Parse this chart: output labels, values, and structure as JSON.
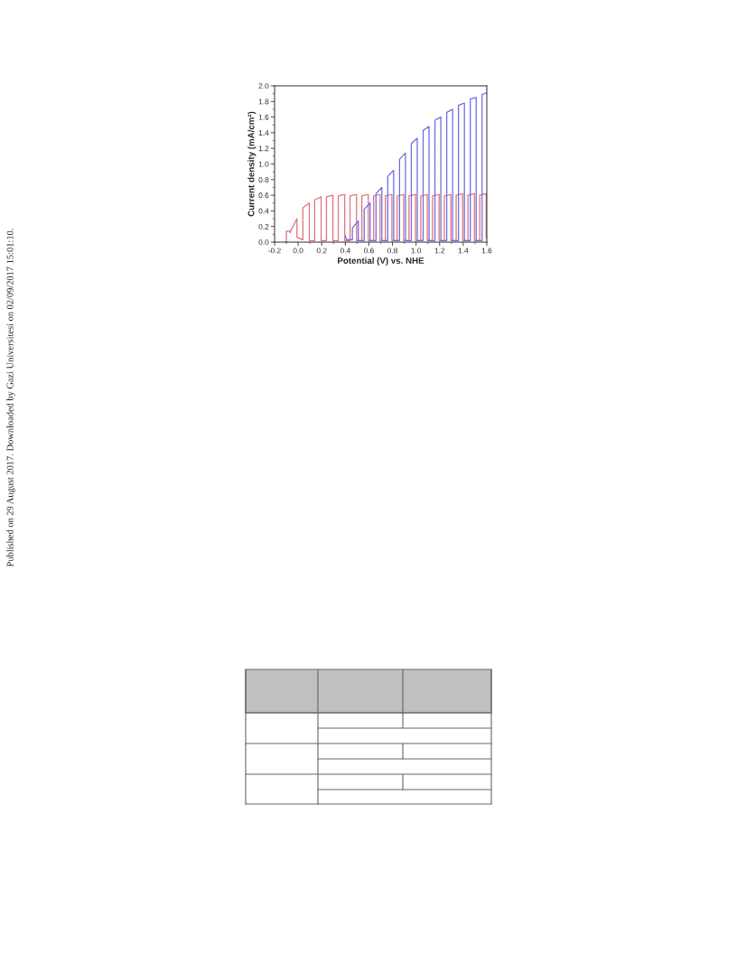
{
  "chart_data": {
    "type": "line",
    "xlabel": "Potential (V) vs. NHE",
    "ylabel": "Current density (mA/cm²)",
    "annotations": [
      "Published on 29 August 2017. Downloaded by Gazi Universitesi on 02/09/2017 15:01:10."
    ],
    "xlim": [
      -0.2,
      1.6
    ],
    "ylim": [
      0,
      2.0
    ],
    "xticks": [
      -0.2,
      {
        "value": 0,
        "label": "0.0"
      },
      0.2,
      0.4,
      0.6,
      0.8,
      {
        "value": 1,
        "label": "1.0"
      },
      1.2,
      1.4,
      1.6
    ],
    "yticks": [
      {
        "value": 0,
        "label": "0.0"
      },
      0.2,
      0.4,
      0.6,
      0.8,
      {
        "value": 1,
        "label": "1.0"
      },
      1.2,
      1.4,
      1.6,
      1.8,
      {
        "value": 2,
        "label": "2.0"
      }
    ],
    "grid": false,
    "marker": "none",
    "line_style": "solid",
    "series": [
      {
        "color": "#e0707a",
        "x": [
          -0.11,
          -0.1,
          -0.1,
          -0.07,
          -0.07,
          -0.01,
          -0.01,
          0.04,
          0.04,
          0.095,
          0.095,
          0.14,
          0.14,
          0.195,
          0.195,
          0.24,
          0.24,
          0.295,
          0.295,
          0.34,
          0.34,
          0.395,
          0.395,
          0.44,
          0.44,
          0.495,
          0.495,
          0.54,
          0.54,
          0.595,
          0.595,
          0.64,
          0.64,
          0.695,
          0.695,
          0.74,
          0.74,
          0.795,
          0.795,
          0.84,
          0.84,
          0.895,
          0.895,
          0.94,
          0.94,
          0.995,
          0.995,
          1.04,
          1.04,
          1.095,
          1.095,
          1.14,
          1.14,
          1.195,
          1.195,
          1.24,
          1.24,
          1.295,
          1.295,
          1.34,
          1.34,
          1.395,
          1.395,
          1.44,
          1.44,
          1.495,
          1.495,
          1.54,
          1.54,
          1.595,
          1.595,
          1.6
        ],
        "values": [
          0,
          0,
          0.14,
          0.14,
          0.12,
          0.3,
          0.06,
          0.03,
          0.44,
          0.5,
          0.02,
          0.02,
          0.54,
          0.58,
          0.02,
          0.02,
          0.58,
          0.6,
          0.02,
          0.02,
          0.59,
          0.61,
          0.02,
          0.02,
          0.59,
          0.61,
          0.02,
          0.02,
          0.59,
          0.61,
          0.02,
          0.02,
          0.59,
          0.61,
          0.02,
          0.02,
          0.59,
          0.61,
          0.02,
          0.02,
          0.59,
          0.61,
          0.02,
          0.02,
          0.59,
          0.61,
          0.02,
          0.02,
          0.59,
          0.61,
          0.02,
          0.02,
          0.59,
          0.61,
          0.02,
          0.02,
          0.59,
          0.61,
          0.02,
          0.02,
          0.6,
          0.62,
          0.02,
          0.02,
          0.6,
          0.62,
          0.02,
          0.02,
          0.6,
          0.62,
          0.05,
          0.05
        ]
      },
      {
        "color": "#6a6ae0",
        "x": [
          0.4,
          0.41,
          0.46,
          0.46,
          0.51,
          0.51,
          0.56,
          0.56,
          0.61,
          0.61,
          0.66,
          0.66,
          0.71,
          0.71,
          0.76,
          0.76,
          0.81,
          0.81,
          0.86,
          0.86,
          0.91,
          0.91,
          0.96,
          0.96,
          1.01,
          1.01,
          1.06,
          1.06,
          1.11,
          1.11,
          1.16,
          1.16,
          1.21,
          1.21,
          1.26,
          1.26,
          1.31,
          1.31,
          1.36,
          1.36,
          1.41,
          1.41,
          1.46,
          1.46,
          1.51,
          1.51,
          1.56,
          1.56,
          1.6
        ],
        "values": [
          0.08,
          0.03,
          0.03,
          0.18,
          0.27,
          0.02,
          0.02,
          0.42,
          0.5,
          0.02,
          0.02,
          0.62,
          0.7,
          0.02,
          0.02,
          0.84,
          0.92,
          0.02,
          0.02,
          1.06,
          1.14,
          0.02,
          0.02,
          1.26,
          1.33,
          0.02,
          0.02,
          1.43,
          1.48,
          0.02,
          0.02,
          1.56,
          1.6,
          0.02,
          0.02,
          1.66,
          1.7,
          0.02,
          0.02,
          1.75,
          1.78,
          0.02,
          0.02,
          1.83,
          1.85,
          0.02,
          0.02,
          1.89,
          1.91
        ]
      }
    ]
  }
}
